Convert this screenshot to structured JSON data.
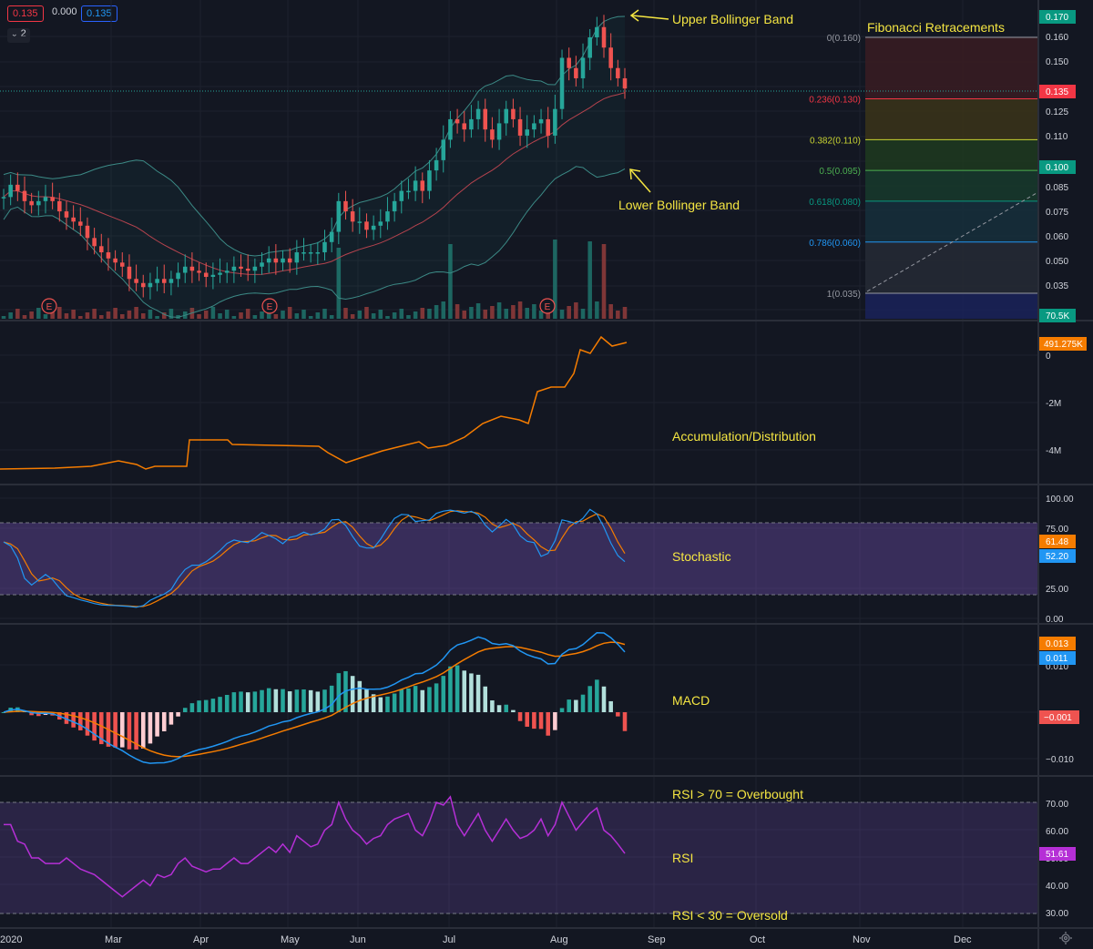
{
  "legend": {
    "open_box": "0.135",
    "change": "0.000",
    "close_box": "0.135",
    "collapse": "2"
  },
  "annotations": {
    "upper_bb": "Upper Bollinger Band",
    "lower_bb": "Lower Bollinger Band",
    "fib_title": "Fibonacci Retracements",
    "ad": "Accumulation/Distribution",
    "stoch": "Stochastic",
    "macd": "MACD",
    "rsi": "RSI",
    "rsi_over": "RSI > 70 = Overbought",
    "rsi_under": "RSI < 30 = Oversold"
  },
  "fib_levels": [
    {
      "label": "0(0.160)",
      "value": 0.16,
      "color": "#9598a1",
      "fill": "#3a1c22"
    },
    {
      "label": "0.236(0.130)",
      "value": 0.13,
      "color": "#f23645",
      "fill": "#3b3419"
    },
    {
      "label": "0.382(0.110)",
      "value": 0.11,
      "color": "#c9d432",
      "fill": "#1f3a1f"
    },
    {
      "label": "0.5(0.095)",
      "value": 0.095,
      "color": "#4caf50",
      "fill": "#173a2c"
    },
    {
      "label": "0.618(0.080)",
      "value": 0.08,
      "color": "#089981",
      "fill": "#162f3b"
    },
    {
      "label": "0.786(0.060)",
      "value": 0.06,
      "color": "#2196f3",
      "fill": "#262a35"
    },
    {
      "label": "1(0.035)",
      "value": 0.035,
      "color": "#9598a1",
      "fill": "#1a2259"
    }
  ],
  "price_axis": {
    "ticks": [
      "0.160",
      "0.150",
      "0.125",
      "0.110",
      "0.085",
      "0.075",
      "0.060",
      "0.050",
      "0.035"
    ],
    "badges": [
      {
        "text": "0.170",
        "color": "#089981"
      },
      {
        "text": "0.135",
        "color": "#f23645"
      },
      {
        "text": "0.100",
        "color": "#089981"
      },
      {
        "text": "70.5K",
        "color": "#089981"
      }
    ]
  },
  "ad_axis": {
    "ticks": [
      "0",
      "-2M",
      "-4M"
    ],
    "badge": "491.275K",
    "badge_color": "#f57c00"
  },
  "stoch_axis": {
    "ticks": [
      "100.00",
      "75.00",
      "25.00",
      "0.00"
    ],
    "badge_k": "61.48",
    "badge_d": "52.20"
  },
  "macd_axis": {
    "ticks": [
      "0.010",
      "−0.010"
    ],
    "badge_signal": "0.013",
    "badge_macd": "0.011",
    "badge_hist": "−0.001"
  },
  "rsi_axis": {
    "ticks": [
      "70.00",
      "60.00",
      "50.00",
      "40.00",
      "30.00"
    ],
    "badge": "51.61"
  },
  "time_axis": [
    "2020",
    "Mar",
    "Apr",
    "May",
    "Jun",
    "Jul",
    "Aug",
    "Sep",
    "Oct",
    "Nov",
    "Dec"
  ],
  "earnings_marker": "E",
  "colors": {
    "up": "#26a69a",
    "down": "#ef5350",
    "ad": "#f57c00",
    "k": "#2196f3",
    "d": "#f57c00",
    "rsi": "#b52fd6"
  },
  "chart_data": {
    "type": "candlestick",
    "close_price_series": [
      0.082,
      0.088,
      0.085,
      0.08,
      0.078,
      0.08,
      0.082,
      0.08,
      0.075,
      0.072,
      0.07,
      0.068,
      0.062,
      0.058,
      0.055,
      0.052,
      0.05,
      0.048,
      0.042,
      0.04,
      0.038,
      0.04,
      0.042,
      0.04,
      0.042,
      0.045,
      0.048,
      0.046,
      0.045,
      0.043,
      0.044,
      0.045,
      0.046,
      0.048,
      0.047,
      0.046,
      0.048,
      0.05,
      0.052,
      0.05,
      0.052,
      0.05,
      0.055,
      0.055,
      0.055,
      0.055,
      0.06,
      0.065,
      0.08,
      0.075,
      0.07,
      0.07,
      0.066,
      0.068,
      0.07,
      0.075,
      0.08,
      0.085,
      0.085,
      0.09,
      0.085,
      0.095,
      0.1,
      0.11,
      0.12,
      0.118,
      0.115,
      0.12,
      0.125,
      0.115,
      0.11,
      0.118,
      0.125,
      0.12,
      0.112,
      0.115,
      0.118,
      0.12,
      0.112,
      0.125,
      0.15,
      0.145,
      0.14,
      0.15,
      0.16,
      0.165,
      0.155,
      0.145,
      0.14,
      0.135
    ],
    "rsi_values": [
      62,
      62,
      56,
      55,
      50,
      50,
      48,
      48,
      48,
      50,
      48,
      46,
      45,
      44,
      42,
      40,
      38,
      36,
      38,
      40,
      42,
      40,
      44,
      43,
      44,
      48,
      50,
      47,
      46,
      45,
      46,
      46,
      48,
      50,
      48,
      48,
      50,
      52,
      54,
      52,
      55,
      52,
      58,
      56,
      54,
      55,
      60,
      62,
      70,
      64,
      60,
      58,
      55,
      57,
      58,
      62,
      64,
      65,
      66,
      60,
      58,
      63,
      70,
      69,
      72,
      62,
      58,
      62,
      66,
      60,
      56,
      60,
      64,
      60,
      57,
      58,
      60,
      64,
      58,
      62,
      70,
      65,
      60,
      63,
      66,
      68,
      60,
      58,
      55,
      51.61
    ]
  }
}
